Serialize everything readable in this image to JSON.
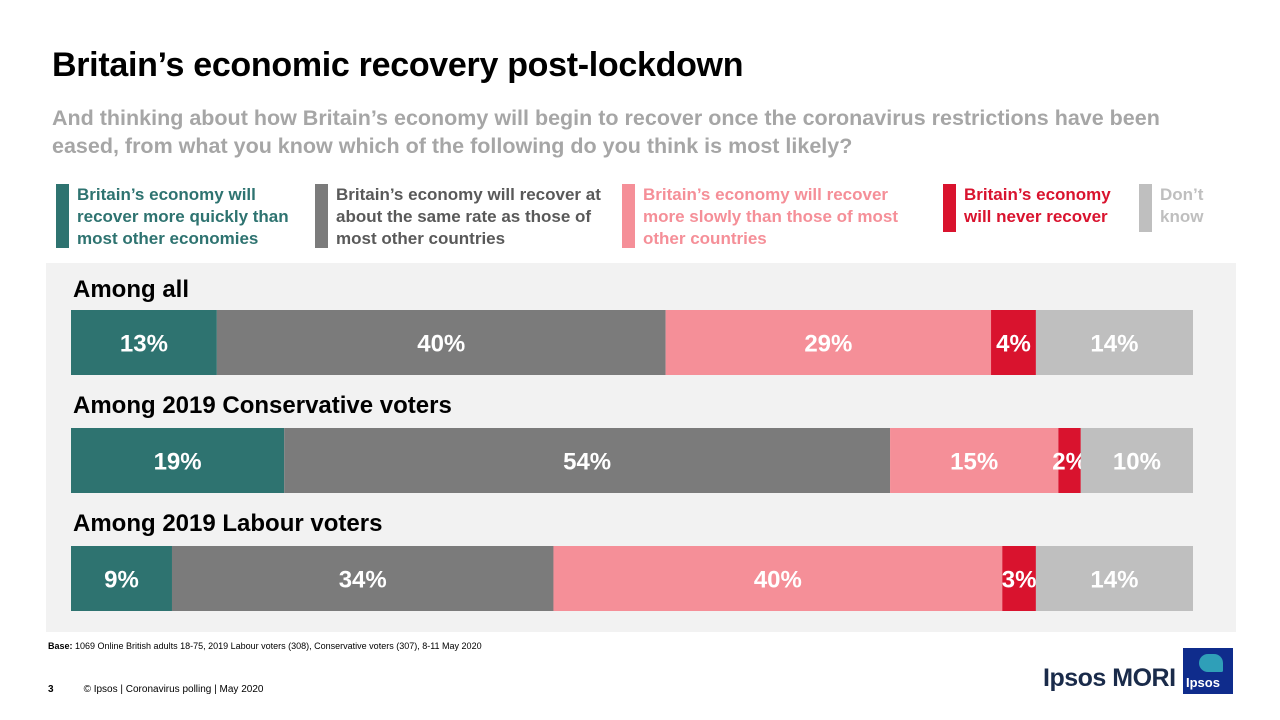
{
  "slide": {
    "title": "Britain’s economic recovery post-lockdown",
    "subtitle": "And thinking about how Britain’s economy will begin to recover once the coronavirus restrictions have been eased, from what you know which of the following do you think is most likely?",
    "base_label": "Base:",
    "base_text": " 1069 Online British adults 18-75, 2019 Labour voters (308), Conservative voters (307), 8-11 May 2020",
    "page_number": "3",
    "footer": "© Ipsos | Coronavirus polling | May 2020",
    "brand": "Ipsos MORI",
    "logo_text": "Ipsos"
  },
  "chart_data": {
    "type": "bar",
    "orientation": "horizontal",
    "stacked": true,
    "legend_position": "top",
    "categories": [
      "Among all",
      "Among 2019 Conservative voters",
      "Among 2019 Labour voters"
    ],
    "series": [
      {
        "name": "Britain’s economy will recover more quickly than most other economies",
        "color": "#2e7370",
        "values": [
          13,
          19,
          9
        ],
        "labels": [
          "13%",
          "19%",
          "9%"
        ]
      },
      {
        "name": "Britain’s economy will recover at about the same rate as those of most other countries",
        "color": "#7b7b7b",
        "values": [
          40,
          54,
          34
        ],
        "labels": [
          "40%",
          "54%",
          "34%"
        ]
      },
      {
        "name": "Britain’s economy will recover more slowly than those of most other countries",
        "color": "#f58f98",
        "values": [
          29,
          15,
          40
        ],
        "labels": [
          "29%",
          "15%",
          "40%"
        ]
      },
      {
        "name": "Britain’s economy will never recover",
        "color": "#d9132e",
        "values": [
          4,
          2,
          3
        ],
        "labels": [
          "4%",
          "2%",
          "3%"
        ]
      },
      {
        "name": "Don’t know",
        "color": "#bfbfbf",
        "values": [
          14,
          10,
          14
        ],
        "labels": [
          "14%",
          "10%",
          "14%"
        ]
      }
    ]
  }
}
